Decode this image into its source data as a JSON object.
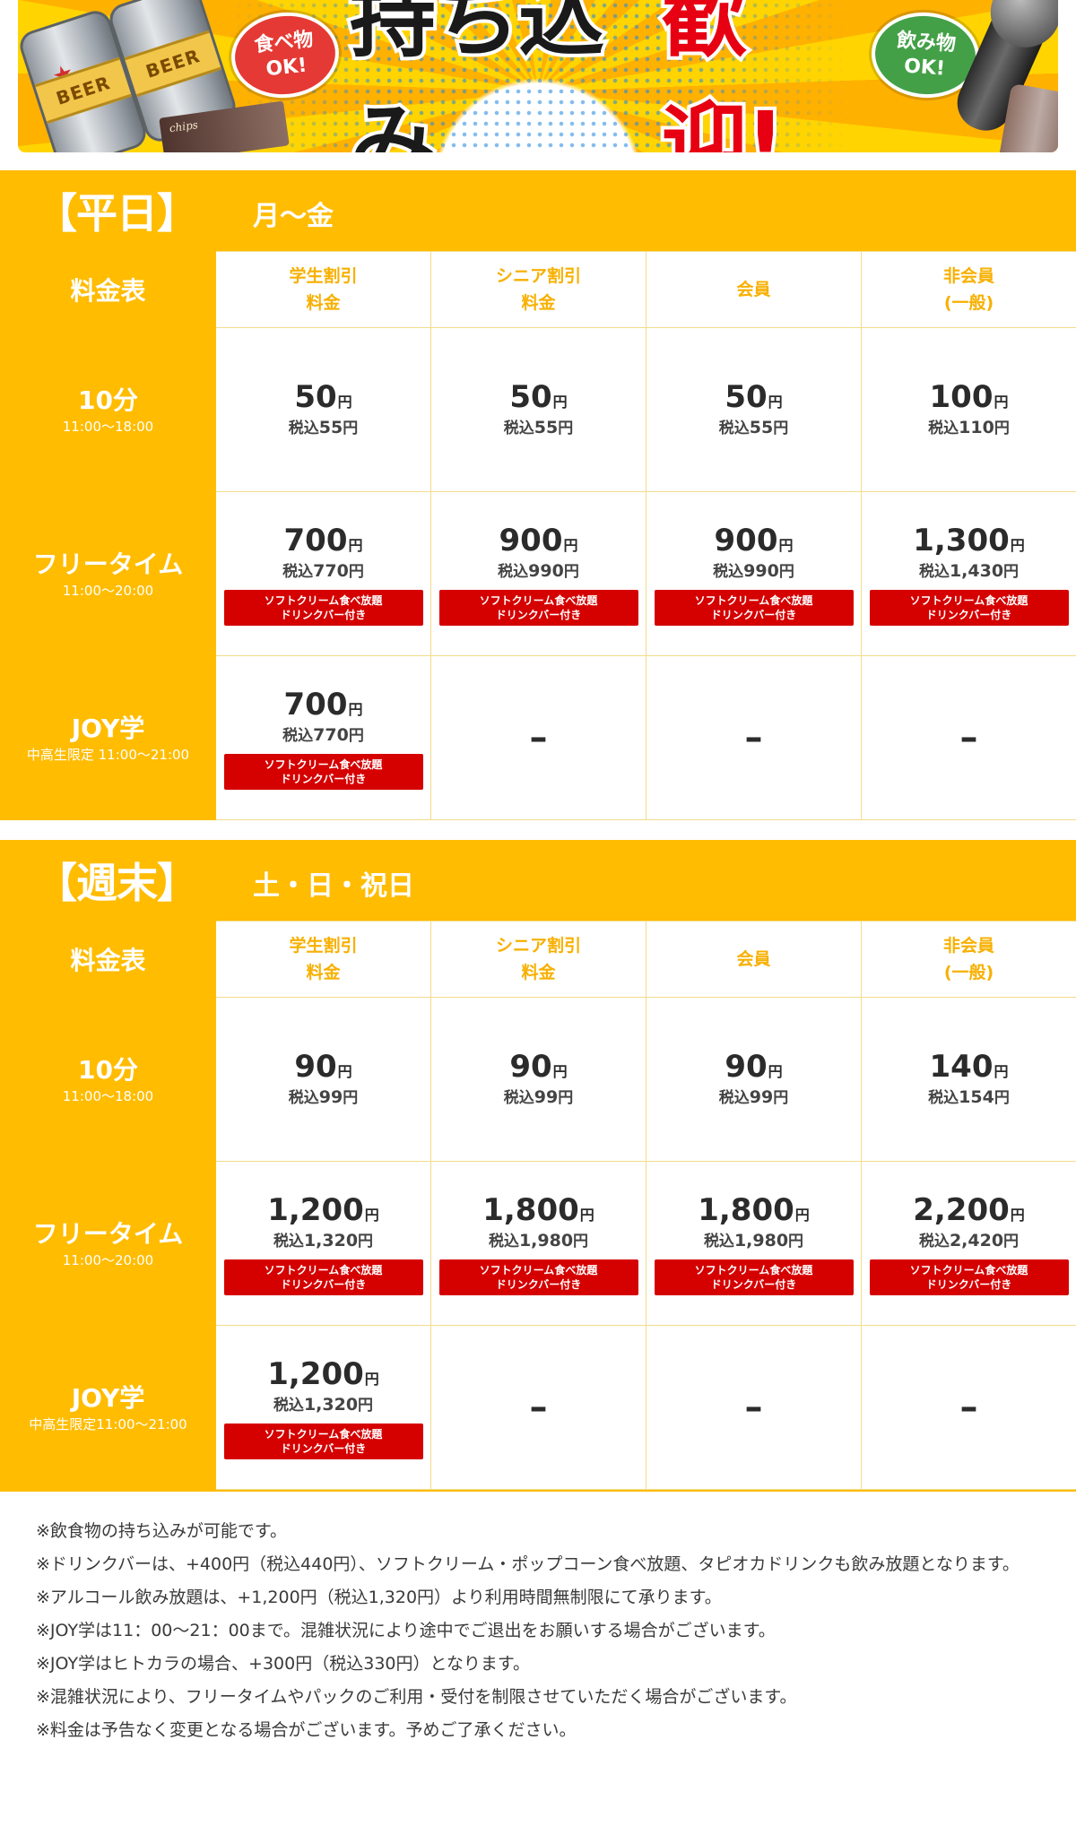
{
  "banner": {
    "title_part1": "持ち込み",
    "title_part2": "歓迎!",
    "food_bubble": [
      "食べ物",
      "OK!"
    ],
    "drink_bubble": [
      "飲み物",
      "OK!"
    ],
    "can_label": "BEER",
    "snack_label": "chips",
    "accent_colors": {
      "yellow": "#ffbc00",
      "red": "#e60012",
      "green": "#43a047"
    }
  },
  "columns": [
    "学生割引\n料金",
    "シニア割引\n料金",
    "会員",
    "非会員\n(一般)"
  ],
  "corner_label": "料金表",
  "badge_lines": [
    "ソフトクリーム食べ放題",
    "ドリンクバー付き"
  ],
  "tax_label": "税込",
  "yen": "円",
  "dash": "–",
  "sections": [
    {
      "title": "【平日】",
      "days": "月～金",
      "rows": [
        {
          "name": "10分",
          "time": "11:00～18:00",
          "cells": [
            {
              "price": "50",
              "tax": "55",
              "badge": false
            },
            {
              "price": "50",
              "tax": "55",
              "badge": false
            },
            {
              "price": "50",
              "tax": "55",
              "badge": false
            },
            {
              "price": "100",
              "tax": "110",
              "badge": false
            }
          ]
        },
        {
          "name": "フリータイム",
          "time": "11:00～20:00",
          "cells": [
            {
              "price": "700",
              "tax": "770",
              "badge": true
            },
            {
              "price": "900",
              "tax": "990",
              "badge": true
            },
            {
              "price": "900",
              "tax": "990",
              "badge": true
            },
            {
              "price": "1,300",
              "tax": "1,430",
              "badge": true
            }
          ]
        },
        {
          "name": "JOY学",
          "time": "中高生限定 11:00～21:00",
          "cells": [
            {
              "price": "700",
              "tax": "770",
              "badge": true
            },
            null,
            null,
            null
          ]
        }
      ]
    },
    {
      "title": "【週末】",
      "days": "土・日・祝日",
      "rows": [
        {
          "name": "10分",
          "time": "11:00～18:00",
          "cells": [
            {
              "price": "90",
              "tax": "99",
              "badge": false
            },
            {
              "price": "90",
              "tax": "99",
              "badge": false
            },
            {
              "price": "90",
              "tax": "99",
              "badge": false
            },
            {
              "price": "140",
              "tax": "154",
              "badge": false
            }
          ]
        },
        {
          "name": "フリータイム",
          "time": "11:00～20:00",
          "cells": [
            {
              "price": "1,200",
              "tax": "1,320",
              "badge": true
            },
            {
              "price": "1,800",
              "tax": "1,980",
              "badge": true
            },
            {
              "price": "1,800",
              "tax": "1,980",
              "badge": true
            },
            {
              "price": "2,200",
              "tax": "2,420",
              "badge": true
            }
          ]
        },
        {
          "name": "JOY学",
          "time": "中高生限定11:00～21:00",
          "cells": [
            {
              "price": "1,200",
              "tax": "1,320",
              "badge": true
            },
            null,
            null,
            null
          ]
        }
      ]
    }
  ],
  "notes": [
    "※飲食物の持ち込みが可能です。",
    "※ドリンクバーは、+400円（税込440円）、ソフトクリーム・ポップコーン食べ放題、タピオカドリンクも飲み放題となります。",
    "※アルコール飲み放題は、+1,200円（税込1,320円）より利用時間無制限にて承ります。",
    "※JOY学は11：00～21：00まで。混雑状況により途中でご退出をお願いする場合がございます。",
    "※JOY学はヒトカラの場合、+300円（税込330円）となります。",
    "※混雑状況により、フリータイムやパックのご利用・受付を制限させていただく場合がございます。",
    "※料金は予告なく変更となる場合がございます。予めご了承ください。"
  ]
}
